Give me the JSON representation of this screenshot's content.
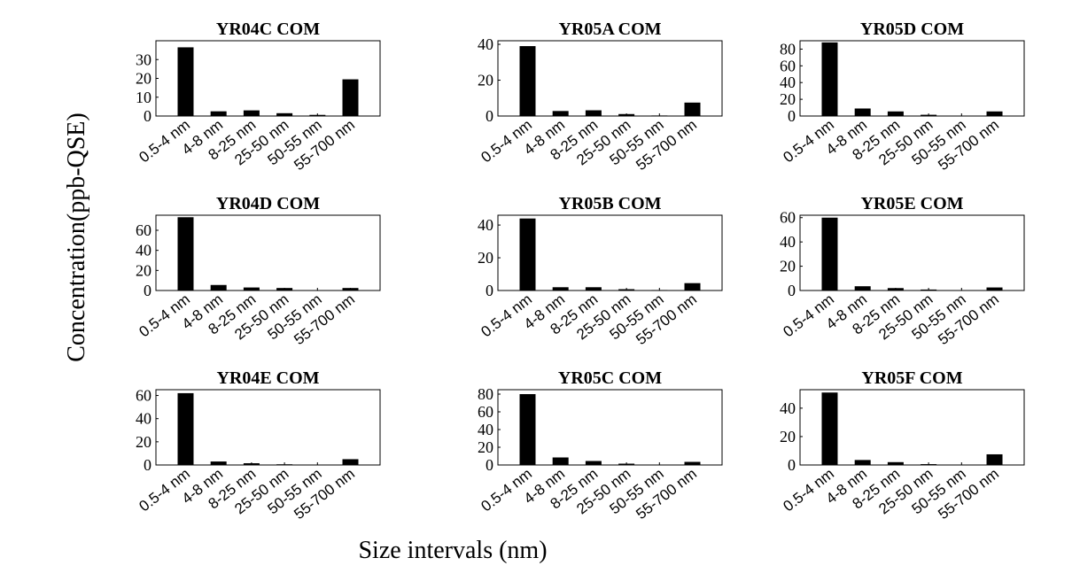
{
  "figure": {
    "ylabel": "Concentration(ppb-QSE)",
    "xlabel": "Size intervals (nm)"
  },
  "chart_data": [
    {
      "type": "bar",
      "title": "YR04C COM",
      "categories": [
        "0.5-4 nm",
        "4-8 nm",
        "8-25 nm",
        "25-50 nm",
        "50-55 nm",
        "55-700 nm"
      ],
      "values": [
        36.5,
        2.5,
        3.0,
        1.5,
        0.6,
        19.5
      ],
      "ylim": [
        0,
        40
      ],
      "yticks": [
        0,
        10,
        20,
        30
      ],
      "grid": false
    },
    {
      "type": "bar",
      "title": "YR05A COM",
      "categories": [
        "0.5-4 nm",
        "4-8 nm",
        "8-25 nm",
        "25-50 nm",
        "50-55 nm",
        "55-700 nm"
      ],
      "values": [
        39.0,
        2.8,
        3.2,
        1.1,
        0.3,
        7.5
      ],
      "ylim": [
        0,
        42
      ],
      "yticks": [
        0,
        20,
        40
      ],
      "grid": false
    },
    {
      "type": "bar",
      "title": "YR05D COM",
      "categories": [
        "0.5-4 nm",
        "4-8 nm",
        "8-25 nm",
        "25-50 nm",
        "50-55 nm",
        "55-700 nm"
      ],
      "values": [
        88.0,
        9.0,
        5.5,
        1.5,
        0.5,
        5.5
      ],
      "ylim": [
        0,
        90
      ],
      "yticks": [
        0,
        20,
        40,
        60,
        80
      ],
      "grid": false
    },
    {
      "type": "bar",
      "title": "YR04D COM",
      "categories": [
        "0.5-4 nm",
        "4-8 nm",
        "8-25 nm",
        "25-50 nm",
        "50-55 nm",
        "55-700 nm"
      ],
      "values": [
        73.0,
        5.5,
        3.0,
        2.5,
        0.3,
        2.5
      ],
      "ylim": [
        0,
        75
      ],
      "yticks": [
        0,
        20,
        40,
        60
      ],
      "grid": false
    },
    {
      "type": "bar",
      "title": "YR05B COM",
      "categories": [
        "0.5-4 nm",
        "4-8 nm",
        "8-25 nm",
        "25-50 nm",
        "50-55 nm",
        "55-700 nm"
      ],
      "values": [
        44.0,
        2.0,
        2.0,
        0.8,
        0.3,
        4.5
      ],
      "ylim": [
        0,
        46
      ],
      "yticks": [
        0,
        20,
        40
      ],
      "grid": false
    },
    {
      "type": "bar",
      "title": "YR05E COM",
      "categories": [
        "0.5-4 nm",
        "4-8 nm",
        "8-25 nm",
        "25-50 nm",
        "50-55 nm",
        "55-700 nm"
      ],
      "values": [
        60.0,
        3.5,
        2.0,
        0.8,
        0.3,
        2.5
      ],
      "ylim": [
        0,
        62
      ],
      "yticks": [
        0,
        20,
        40,
        60
      ],
      "grid": false
    },
    {
      "type": "bar",
      "title": "YR04E COM",
      "categories": [
        "0.5-4 nm",
        "4-8 nm",
        "8-25 nm",
        "25-50 nm",
        "50-55 nm",
        "55-700 nm"
      ],
      "values": [
        62.0,
        3.0,
        1.5,
        0.6,
        0.2,
        5.0
      ],
      "ylim": [
        0,
        65
      ],
      "yticks": [
        0,
        20,
        40,
        60
      ],
      "grid": false
    },
    {
      "type": "bar",
      "title": "YR05C COM",
      "categories": [
        "0.5-4 nm",
        "4-8 nm",
        "8-25 nm",
        "25-50 nm",
        "50-55 nm",
        "55-700 nm"
      ],
      "values": [
        80.0,
        8.5,
        4.5,
        1.5,
        0.5,
        3.5
      ],
      "ylim": [
        0,
        85
      ],
      "yticks": [
        0,
        20,
        40,
        60,
        80
      ],
      "grid": false
    },
    {
      "type": "bar",
      "title": "YR05F COM",
      "categories": [
        "0.5-4 nm",
        "4-8 nm",
        "8-25 nm",
        "25-50 nm",
        "50-55 nm",
        "55-700 nm"
      ],
      "values": [
        51.0,
        3.5,
        2.0,
        0.6,
        0.2,
        7.5
      ],
      "ylim": [
        0,
        53
      ],
      "yticks": [
        0,
        20,
        40
      ],
      "grid": false
    }
  ]
}
